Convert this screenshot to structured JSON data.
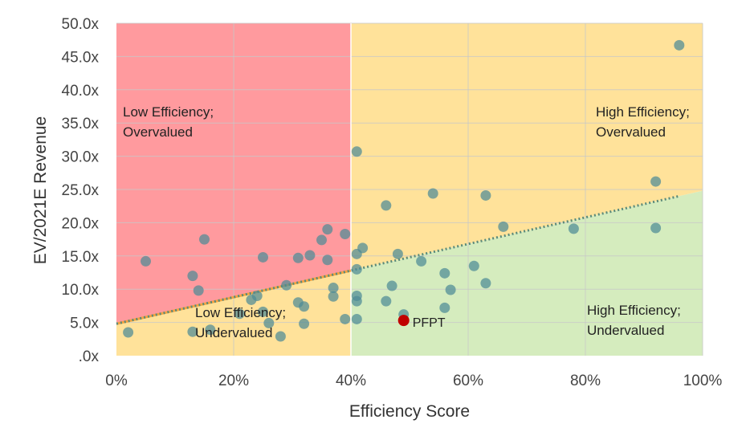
{
  "chart_data": {
    "type": "scatter",
    "xlabel": "Efficiency Score",
    "ylabel": "EV/2021E Revenue",
    "xlim": [
      0,
      1
    ],
    "ylim": [
      0,
      50
    ],
    "x_ticks": [
      "0%",
      "20%",
      "40%",
      "60%",
      "80%",
      "100%"
    ],
    "y_ticks": [
      ".0x",
      "5.0x",
      "10.0x",
      "15.0x",
      "20.0x",
      "25.0x",
      "30.0x",
      "35.0x",
      "40.0x",
      "45.0x",
      "50.0x"
    ],
    "grid": true,
    "quadrants": [
      {
        "label_lines": [
          "Low Efficiency;",
          "Overvalued"
        ],
        "color": "#ff9a9e"
      },
      {
        "label_lines": [
          "High Efficiency;",
          "Overvalued"
        ],
        "color": "#ffe29a"
      },
      {
        "label_lines": [
          "Low Efficiency;",
          "Undervalued"
        ],
        "color": "#ffe29a"
      },
      {
        "label_lines": [
          "High Efficiency;",
          "Undervalued"
        ],
        "color": "#d5ecbe"
      }
    ],
    "regression_line": {
      "x": [
        0,
        0.96
      ],
      "y": [
        4.8,
        24.0
      ],
      "color": "#5b8a7a",
      "style": "dotted"
    },
    "point_color": "#4d8a96",
    "highlight": {
      "name": "PFPT",
      "x": 0.49,
      "y": 5.3,
      "color": "#c00000"
    },
    "points": [
      {
        "x": 0.02,
        "y": 3.5
      },
      {
        "x": 0.05,
        "y": 14.2
      },
      {
        "x": 0.13,
        "y": 12.0
      },
      {
        "x": 0.14,
        "y": 9.8
      },
      {
        "x": 0.15,
        "y": 17.5
      },
      {
        "x": 0.13,
        "y": 3.6
      },
      {
        "x": 0.16,
        "y": 3.9
      },
      {
        "x": 0.21,
        "y": 6.3
      },
      {
        "x": 0.23,
        "y": 8.4
      },
      {
        "x": 0.24,
        "y": 9.0
      },
      {
        "x": 0.25,
        "y": 14.8
      },
      {
        "x": 0.25,
        "y": 6.6
      },
      {
        "x": 0.26,
        "y": 4.9
      },
      {
        "x": 0.28,
        "y": 2.9
      },
      {
        "x": 0.29,
        "y": 10.6
      },
      {
        "x": 0.31,
        "y": 14.7
      },
      {
        "x": 0.31,
        "y": 8.0
      },
      {
        "x": 0.32,
        "y": 7.4
      },
      {
        "x": 0.32,
        "y": 4.8
      },
      {
        "x": 0.33,
        "y": 15.1
      },
      {
        "x": 0.35,
        "y": 17.4
      },
      {
        "x": 0.36,
        "y": 19.0
      },
      {
        "x": 0.36,
        "y": 14.4
      },
      {
        "x": 0.37,
        "y": 10.2
      },
      {
        "x": 0.37,
        "y": 8.9
      },
      {
        "x": 0.39,
        "y": 18.3
      },
      {
        "x": 0.39,
        "y": 5.5
      },
      {
        "x": 0.41,
        "y": 30.7
      },
      {
        "x": 0.41,
        "y": 15.3
      },
      {
        "x": 0.41,
        "y": 13.0
      },
      {
        "x": 0.41,
        "y": 9.0
      },
      {
        "x": 0.41,
        "y": 8.2
      },
      {
        "x": 0.41,
        "y": 5.5
      },
      {
        "x": 0.42,
        "y": 16.2
      },
      {
        "x": 0.46,
        "y": 22.6
      },
      {
        "x": 0.46,
        "y": 8.2
      },
      {
        "x": 0.47,
        "y": 10.5
      },
      {
        "x": 0.48,
        "y": 15.3
      },
      {
        "x": 0.49,
        "y": 6.2
      },
      {
        "x": 0.52,
        "y": 14.2
      },
      {
        "x": 0.54,
        "y": 24.4
      },
      {
        "x": 0.56,
        "y": 12.4
      },
      {
        "x": 0.56,
        "y": 7.2
      },
      {
        "x": 0.57,
        "y": 9.9
      },
      {
        "x": 0.61,
        "y": 13.5
      },
      {
        "x": 0.63,
        "y": 24.1
      },
      {
        "x": 0.63,
        "y": 10.9
      },
      {
        "x": 0.66,
        "y": 19.4
      },
      {
        "x": 0.78,
        "y": 19.1
      },
      {
        "x": 0.92,
        "y": 26.2
      },
      {
        "x": 0.92,
        "y": 19.2
      },
      {
        "x": 0.96,
        "y": 46.7
      }
    ]
  }
}
